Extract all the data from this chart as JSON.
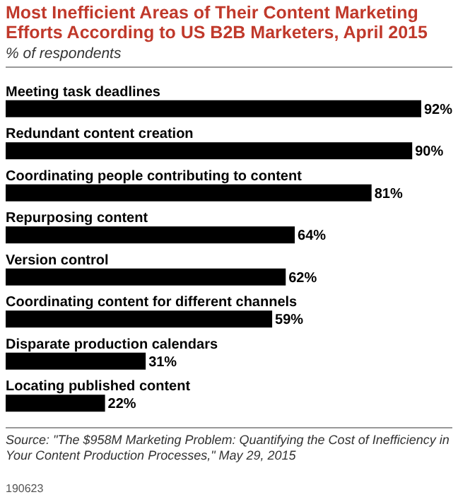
{
  "chart_data": {
    "type": "bar",
    "orientation": "horizontal",
    "title": "Most Inefficient Areas of Their Content Marketing Efforts According to US B2B Marketers, April 2015",
    "subtitle": "% of respondents",
    "categories": [
      "Meeting task deadlines",
      "Redundant content creation",
      "Coordinating people contributing to content",
      "Repurposing content",
      "Version control",
      "Coordinating content for different channels",
      "Disparate production calendars",
      "Locating published content"
    ],
    "values": [
      92,
      90,
      81,
      64,
      62,
      59,
      31,
      22
    ],
    "value_labels": [
      "92%",
      "90%",
      "81%",
      "64%",
      "62%",
      "59%",
      "31%",
      "22%"
    ],
    "color": "#000000",
    "annotations": [
      "Source: \"The $958M Marketing Problem: Quantifying the Cost of Inefficiency in Your Content Production Processes,\" May 29, 2015",
      "190623"
    ]
  }
}
